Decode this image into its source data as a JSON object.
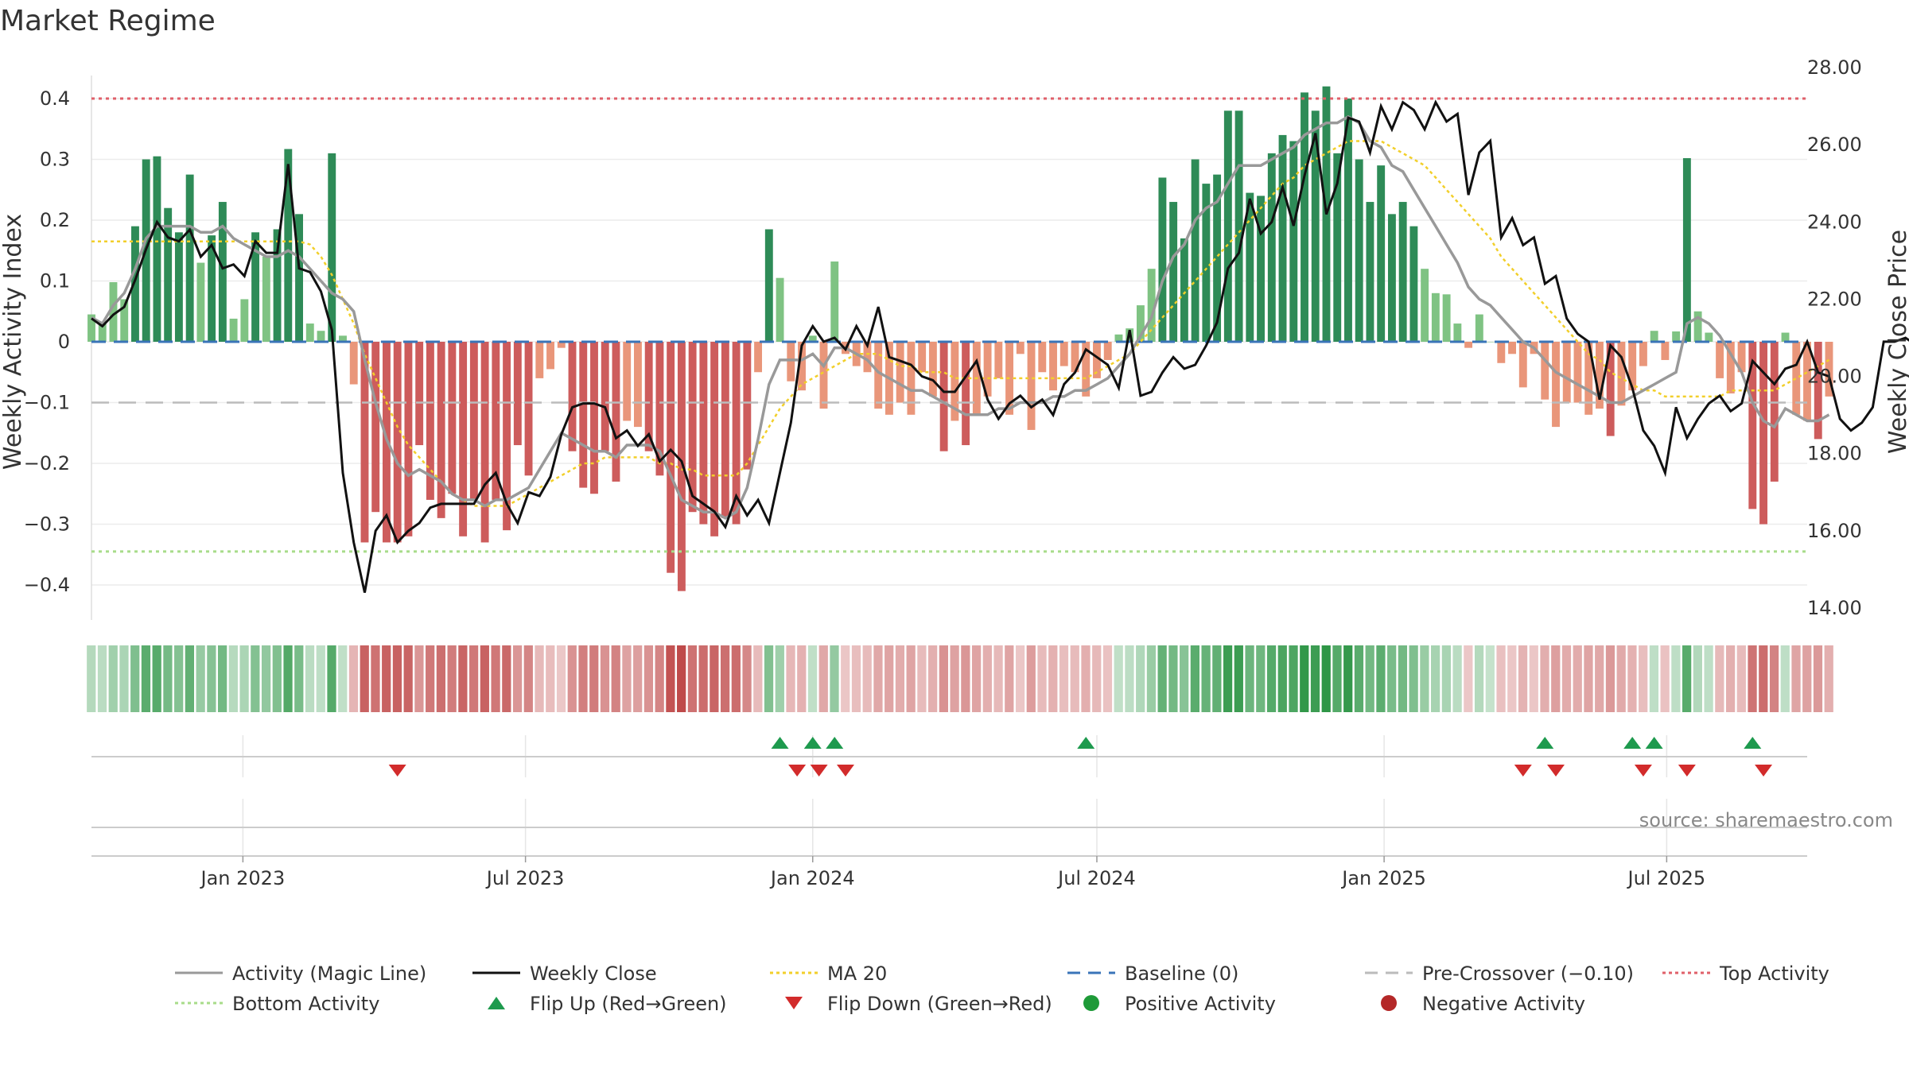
{
  "chart_data": {
    "type": "bar",
    "title": "Market Regime",
    "ylabel_left": "Weekly Activity Index",
    "ylabel_right": "Weekly Close Price",
    "source": "source: sharemaestro.com",
    "x_range": [
      "2022-09-26",
      "2025-09-29"
    ],
    "x_ticks": [
      "Jan 2023",
      "Jul 2023",
      "Jan 2024",
      "Jul 2024",
      "Jan 2025",
      "Jul 2025"
    ],
    "x_tick_dates": [
      "2023-01-01",
      "2023-07-01",
      "2024-01-01",
      "2024-07-01",
      "2025-01-01",
      "2025-07-01"
    ],
    "ylim_left": [
      -0.455,
      0.455
    ],
    "yticks_left": [
      "0.4",
      "0.3",
      "0.2",
      "0.1",
      "0",
      "−0.1",
      "−0.2",
      "−0.3",
      "−0.4"
    ],
    "yticks_left_values": [
      0.4,
      0.3,
      0.2,
      0.1,
      0,
      -0.1,
      -0.2,
      -0.3,
      -0.4
    ],
    "ylim_right": [
      14.0,
      28.0
    ],
    "yticks_right": [
      "28.00",
      "26.00",
      "24.00",
      "22.00",
      "20.00",
      "18.00",
      "16.00",
      "14.00"
    ],
    "yticks_right_values": [
      28,
      26,
      24,
      22,
      20,
      18,
      16,
      14
    ],
    "reference_lines": {
      "top_activity": 0.4,
      "pre_crossover": -0.1,
      "bottom_activity": -0.345,
      "baseline": 0
    },
    "start_date": "2022-09-26",
    "interval_days": 7,
    "activity": [
      0.045,
      0.03,
      0.098,
      0.07,
      0.19,
      0.3,
      0.305,
      0.22,
      0.18,
      0.275,
      0.13,
      0.175,
      0.23,
      0.038,
      0.07,
      0.18,
      0.14,
      0.185,
      0.317,
      0.21,
      0.03,
      0.018,
      0.31,
      0.01,
      -0.07,
      -0.33,
      -0.28,
      -0.33,
      -0.33,
      -0.32,
      -0.17,
      -0.26,
      -0.29,
      -0.25,
      -0.32,
      -0.26,
      -0.33,
      -0.26,
      -0.31,
      -0.17,
      -0.22,
      -0.06,
      -0.045,
      -0.01,
      -0.18,
      -0.24,
      -0.25,
      -0.18,
      -0.23,
      -0.13,
      -0.14,
      -0.18,
      -0.22,
      -0.38,
      -0.41,
      -0.28,
      -0.3,
      -0.32,
      -0.29,
      -0.3,
      -0.21,
      -0.05,
      0.185,
      0.105,
      -0.065,
      -0.08,
      0.01,
      -0.11,
      0.132,
      -0.02,
      -0.04,
      -0.05,
      -0.11,
      -0.12,
      -0.1,
      -0.12,
      -0.05,
      -0.09,
      -0.18,
      -0.13,
      -0.17,
      -0.12,
      -0.09,
      -0.06,
      -0.12,
      -0.02,
      -0.145,
      -0.05,
      -0.08,
      -0.04,
      -0.05,
      -0.09,
      -0.06,
      -0.03,
      0.012,
      0.022,
      0.06,
      0.12,
      0.27,
      0.23,
      0.17,
      0.3,
      0.26,
      0.275,
      0.38,
      0.38,
      0.245,
      0.24,
      0.31,
      0.34,
      0.33,
      0.41,
      0.38,
      0.42,
      0.31,
      0.4,
      0.3,
      0.23,
      0.29,
      0.21,
      0.23,
      0.19,
      0.12,
      0.08,
      0.078,
      0.03,
      -0.01,
      0.045,
      0,
      -0.035,
      -0.02,
      -0.075,
      -0.02,
      -0.095,
      -0.14,
      -0.1,
      -0.1,
      -0.12,
      -0.11,
      -0.155,
      -0.105,
      -0.08,
      -0.04,
      0.018,
      -0.03,
      0.017,
      0.302,
      0.05,
      0.015,
      -0.06,
      -0.085,
      -0.05,
      -0.275,
      -0.3,
      -0.23,
      0.015,
      -0.12,
      -0.13,
      -0.16,
      -0.09
    ],
    "magic_line": [
      0.04,
      0.03,
      0.06,
      0.08,
      0.12,
      0.17,
      0.19,
      0.19,
      0.19,
      0.19,
      0.18,
      0.18,
      0.19,
      0.17,
      0.16,
      0.15,
      0.14,
      0.14,
      0.15,
      0.14,
      0.12,
      0.1,
      0.08,
      0.07,
      0.05,
      -0.03,
      -0.1,
      -0.16,
      -0.2,
      -0.22,
      -0.21,
      -0.22,
      -0.23,
      -0.25,
      -0.26,
      -0.26,
      -0.27,
      -0.26,
      -0.26,
      -0.25,
      -0.24,
      -0.21,
      -0.18,
      -0.15,
      -0.16,
      -0.17,
      -0.18,
      -0.18,
      -0.19,
      -0.17,
      -0.17,
      -0.17,
      -0.18,
      -0.22,
      -0.26,
      -0.27,
      -0.28,
      -0.28,
      -0.29,
      -0.28,
      -0.24,
      -0.16,
      -0.07,
      -0.03,
      -0.03,
      -0.03,
      -0.02,
      -0.04,
      -0.01,
      -0.01,
      -0.02,
      -0.03,
      -0.05,
      -0.06,
      -0.07,
      -0.08,
      -0.08,
      -0.09,
      -0.1,
      -0.11,
      -0.12,
      -0.12,
      -0.12,
      -0.11,
      -0.11,
      -0.1,
      -0.1,
      -0.1,
      -0.09,
      -0.09,
      -0.08,
      -0.08,
      -0.07,
      -0.06,
      -0.04,
      -0.02,
      0.01,
      0.04,
      0.1,
      0.14,
      0.16,
      0.2,
      0.22,
      0.23,
      0.26,
      0.29,
      0.29,
      0.29,
      0.3,
      0.31,
      0.32,
      0.34,
      0.35,
      0.36,
      0.36,
      0.37,
      0.36,
      0.33,
      0.32,
      0.29,
      0.28,
      0.25,
      0.22,
      0.19,
      0.16,
      0.13,
      0.09,
      0.07,
      0.06,
      0.04,
      0.02,
      0,
      -0.01,
      -0.03,
      -0.05,
      -0.06,
      -0.07,
      -0.08,
      -0.09,
      -0.1,
      -0.1,
      -0.09,
      -0.08,
      -0.07,
      -0.06,
      -0.05,
      0.03,
      0.04,
      0.03,
      0.01,
      -0.02,
      -0.05,
      -0.1,
      -0.13,
      -0.14,
      -0.11,
      -0.12,
      -0.13,
      -0.13,
      -0.12
    ],
    "ma20": [
      0.165,
      0.165,
      0.165,
      0.165,
      0.165,
      0.165,
      0.165,
      0.165,
      0.165,
      0.165,
      0.165,
      0.165,
      0.165,
      0.165,
      0.165,
      0.165,
      0.165,
      0.165,
      0.165,
      0.165,
      0.16,
      0.14,
      0.11,
      0.07,
      0.03,
      -0.02,
      -0.06,
      -0.1,
      -0.14,
      -0.17,
      -0.19,
      -0.21,
      -0.23,
      -0.25,
      -0.26,
      -0.27,
      -0.27,
      -0.27,
      -0.27,
      -0.26,
      -0.25,
      -0.24,
      -0.23,
      -0.22,
      -0.21,
      -0.2,
      -0.2,
      -0.19,
      -0.19,
      -0.19,
      -0.19,
      -0.19,
      -0.2,
      -0.2,
      -0.21,
      -0.21,
      -0.22,
      -0.22,
      -0.22,
      -0.22,
      -0.2,
      -0.17,
      -0.14,
      -0.11,
      -0.09,
      -0.07,
      -0.06,
      -0.05,
      -0.04,
      -0.03,
      -0.02,
      -0.02,
      -0.02,
      -0.03,
      -0.04,
      -0.04,
      -0.05,
      -0.05,
      -0.05,
      -0.06,
      -0.06,
      -0.06,
      -0.06,
      -0.06,
      -0.06,
      -0.06,
      -0.06,
      -0.06,
      -0.06,
      -0.06,
      -0.06,
      -0.06,
      -0.05,
      -0.04,
      -0.03,
      -0.02,
      0,
      0.02,
      0.04,
      0.06,
      0.08,
      0.1,
      0.12,
      0.14,
      0.16,
      0.18,
      0.2,
      0.22,
      0.24,
      0.26,
      0.27,
      0.29,
      0.3,
      0.31,
      0.32,
      0.33,
      0.33,
      0.33,
      0.33,
      0.32,
      0.31,
      0.3,
      0.29,
      0.27,
      0.25,
      0.23,
      0.21,
      0.19,
      0.17,
      0.14,
      0.12,
      0.1,
      0.08,
      0.06,
      0.04,
      0.02,
      0,
      -0.02,
      -0.03,
      -0.05,
      -0.06,
      -0.07,
      -0.08,
      -0.08,
      -0.09,
      -0.09,
      -0.09,
      -0.09,
      -0.09,
      -0.09,
      -0.08,
      -0.08,
      -0.08,
      -0.08,
      -0.08,
      -0.07,
      -0.06,
      -0.05,
      -0.04,
      -0.03
    ],
    "weekly_close": [
      21.5,
      21.3,
      21.6,
      21.8,
      22.5,
      23.3,
      24.0,
      23.6,
      23.5,
      23.8,
      23.1,
      23.4,
      22.8,
      22.9,
      22.6,
      23.5,
      23.2,
      23.2,
      25.5,
      22.8,
      22.7,
      22.2,
      21.2,
      17.5,
      15.7,
      14.4,
      16.0,
      16.4,
      15.7,
      16.0,
      16.2,
      16.6,
      16.7,
      16.7,
      16.7,
      16.7,
      17.2,
      17.5,
      16.7,
      16.2,
      17.0,
      16.9,
      17.4,
      18.5,
      19.2,
      19.3,
      19.3,
      19.2,
      18.4,
      18.6,
      18.2,
      18.5,
      17.8,
      18.1,
      17.8,
      16.9,
      16.7,
      16.5,
      16.1,
      16.9,
      16.4,
      16.8,
      16.2,
      17.5,
      18.8,
      20.8,
      21.3,
      20.9,
      21.0,
      20.7,
      21.3,
      20.8,
      21.8,
      20.5,
      20.4,
      20.3,
      20.0,
      19.9,
      19.6,
      19.6,
      20.0,
      20.4,
      19.4,
      18.9,
      19.3,
      19.5,
      19.2,
      19.4,
      19.0,
      19.8,
      20.1,
      20.7,
      20.5,
      20.3,
      19.7,
      21.2,
      19.5,
      19.6,
      20.1,
      20.5,
      20.2,
      20.3,
      20.8,
      21.4,
      22.8,
      23.2,
      24.6,
      23.7,
      24.0,
      24.9,
      23.9,
      25.2,
      26.3,
      24.2,
      25.0,
      26.7,
      26.6,
      25.8,
      27.0,
      26.4,
      27.1,
      26.9,
      26.4,
      27.1,
      26.6,
      26.8,
      24.7,
      25.8,
      26.1,
      23.6,
      24.1,
      23.4,
      23.6,
      22.4,
      22.6,
      21.5,
      21.1,
      20.9,
      19.4,
      20.8,
      20.5,
      19.7,
      18.6,
      18.2,
      17.5,
      19.2,
      18.4,
      18.9,
      19.3,
      19.5,
      19.1,
      19.3,
      20.4,
      20.1,
      19.8,
      20.2,
      20.3,
      20.9,
      20.1,
      20.0,
      18.9,
      18.6,
      18.8,
      19.2,
      20.9,
      20.9,
      21.0,
      20.8,
      20.8
    ],
    "flip_up_dates": [
      "2023-12-11",
      "2024-01-01",
      "2024-01-15",
      "2024-06-24",
      "2025-04-14",
      "2025-06-09",
      "2025-06-23",
      "2025-08-25"
    ],
    "flip_down_dates": [
      "2023-04-10",
      "2023-12-22",
      "2024-01-05",
      "2024-01-22",
      "2025-03-31",
      "2025-04-21",
      "2025-06-16",
      "2025-07-14",
      "2025-09-01"
    ],
    "legend": [
      {
        "label": "Activity (Magic Line)",
        "marker": "line",
        "color": "#999999",
        "style": "solid"
      },
      {
        "label": "Weekly Close",
        "marker": "line",
        "color": "#111111",
        "style": "solid"
      },
      {
        "label": "MA 20",
        "marker": "line",
        "color": "#f2cf2a",
        "style": "dotted"
      },
      {
        "label": "Baseline (0)",
        "marker": "line",
        "color": "#3a74b8",
        "style": "dashed"
      },
      {
        "label": "Pre-Crossover (−0.10)",
        "marker": "line",
        "color": "#bbbbbb",
        "style": "dashed"
      },
      {
        "label": "Top Activity",
        "marker": "line",
        "color": "#e0606a",
        "style": "dotted"
      },
      {
        "label": "Bottom Activity",
        "marker": "line",
        "color": "#a8dc8a",
        "style": "dotted"
      },
      {
        "label": "Flip Up (Red→Green)",
        "marker": "triangle-up",
        "color": "#1e9a4e"
      },
      {
        "label": "Flip Down (Green→Red)",
        "marker": "triangle-down",
        "color": "#d22b2b"
      },
      {
        "label": "Positive Activity",
        "marker": "circle",
        "color": "#1e9a38"
      },
      {
        "label": "Negative Activity",
        "marker": "circle",
        "color": "#b42828"
      }
    ],
    "legend_position": "bottom",
    "grid": true
  }
}
